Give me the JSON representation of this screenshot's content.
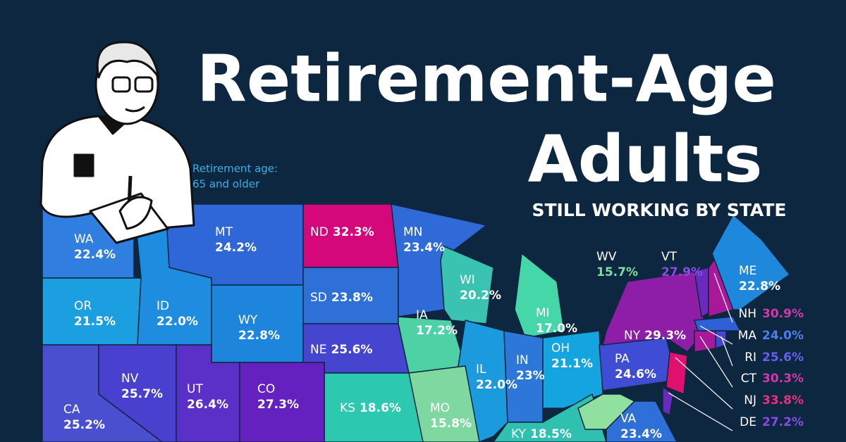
{
  "title": {
    "line1": "Retirement-Age",
    "line2": "Adults",
    "subtitle": "STILL WORKING BY STATE"
  },
  "note": {
    "line1": "Retirement age:",
    "line2": "65 and older"
  },
  "states": [
    {
      "code": "WA",
      "value": "22.4%",
      "color": "#2f7ee0"
    },
    {
      "code": "OR",
      "value": "21.5%",
      "color": "#1c9fe0"
    },
    {
      "code": "ID",
      "value": "22.0%",
      "color": "#1e8de0"
    },
    {
      "code": "MT",
      "value": "24.2%",
      "color": "#2f66d8"
    },
    {
      "code": "WY",
      "value": "22.8%",
      "color": "#1d85dc"
    },
    {
      "code": "ND",
      "value": "32.3%",
      "color": "#d4087a"
    },
    {
      "code": "SD",
      "value": "23.8%",
      "color": "#2f70d8"
    },
    {
      "code": "NE",
      "value": "25.6%",
      "color": "#4645d0"
    },
    {
      "code": "MN",
      "value": "23.4%",
      "color": "#306ad8"
    },
    {
      "code": "WI",
      "value": "20.2%",
      "color": "#39c3b0"
    },
    {
      "code": "MI",
      "value": "17.0%",
      "color": "#46d7a8"
    },
    {
      "code": "IA",
      "value": "17.2%",
      "color": "#4ed1a4"
    },
    {
      "code": "IL",
      "value": "22.0%",
      "color": "#1b9ade"
    },
    {
      "code": "IN",
      "value": "23%",
      "color": "#2d77d8"
    },
    {
      "code": "OH",
      "value": "21.1%",
      "color": "#14a5e0"
    },
    {
      "code": "KS",
      "value": "18.6%",
      "color": "#2cc8b0"
    },
    {
      "code": "MO",
      "value": "15.8%",
      "color": "#7ed8a0"
    },
    {
      "code": "KY",
      "value": "18.5%",
      "color": "#30c0b0"
    },
    {
      "code": "CA",
      "value": "25.2%",
      "color": "#4a4fd0"
    },
    {
      "code": "NV",
      "value": "25.7%",
      "color": "#4a40d0"
    },
    {
      "code": "UT",
      "value": "26.4%",
      "color": "#5a30c8"
    },
    {
      "code": "CO",
      "value": "27.3%",
      "color": "#6520c0"
    },
    {
      "code": "PA",
      "value": "24.6%",
      "color": "#3f4cd4"
    },
    {
      "code": "NY",
      "value": "29.3%",
      "color": "#8e1ea8"
    },
    {
      "code": "VT",
      "value": "27.9%",
      "color": "#6a2ac0",
      "label_color": "#8a4ae8"
    },
    {
      "code": "NH",
      "value": "30.9%",
      "color": "#a81898",
      "label_color": "#d03aa8"
    },
    {
      "code": "ME",
      "value": "22.8%",
      "color": "#1e88dc"
    },
    {
      "code": "MA",
      "value": "24.0%",
      "color": "#3060d8",
      "label_color": "#4a80f0"
    },
    {
      "code": "RI",
      "value": "25.6%",
      "color": "#4645d0",
      "label_color": "#6a60f0"
    },
    {
      "code": "CT",
      "value": "30.3%",
      "color": "#a8189a",
      "label_color": "#d03aa8"
    },
    {
      "code": "NJ",
      "value": "33.8%",
      "color": "#e0106e",
      "label_color": "#e8307e"
    },
    {
      "code": "DE",
      "value": "27.2%",
      "color": "#6a28c0",
      "label_color": "#8a4ae8"
    },
    {
      "code": "WV",
      "value": "15.7%",
      "color": "#90e0a0",
      "label_color": "#7ee0a0"
    },
    {
      "code": "VA",
      "value": "23.4%",
      "color": "#2f6fd8"
    }
  ]
}
